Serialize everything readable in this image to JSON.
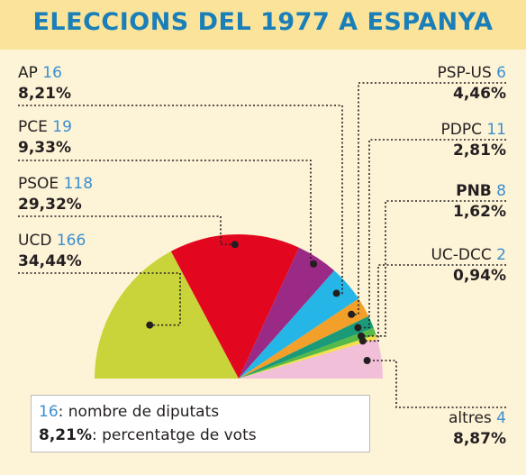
{
  "title": "ELECCIONS DEL 1977 A ESPANYA",
  "legend": {
    "seats_example": "16",
    "seats_text": ": nombre de diputats",
    "pct_example": "8,21%",
    "pct_text": ": percentatge de vots"
  },
  "labels": {
    "ucd": {
      "name": "UCD",
      "seats": "166",
      "pct": "34,44%"
    },
    "psoe": {
      "name": "PSOE",
      "seats": "118",
      "pct": "29,32%"
    },
    "pce": {
      "name": "PCE",
      "seats": "19",
      "pct": "9,33%"
    },
    "ap": {
      "name": "AP",
      "seats": "16",
      "pct": "8,21%"
    },
    "pspus": {
      "name": "PSP-US",
      "seats": "6",
      "pct": "4,46%"
    },
    "pdpc": {
      "name": "PDPC",
      "seats": "11",
      "pct": "2,81%"
    },
    "pnb": {
      "name": "PNB",
      "seats": "8",
      "pct": "1,62%"
    },
    "ucdcc": {
      "name": "UC-DCC",
      "seats": "2",
      "pct": "0,94%"
    },
    "altres": {
      "name": "altres",
      "seats": "4",
      "pct": "8,87%"
    }
  },
  "chart_data": {
    "type": "pie",
    "shape": "semicircle",
    "title": "ELECCIONS DEL 1977 A ESPANYA",
    "slices": [
      {
        "name": "UCD",
        "seats": 166,
        "value": 34.44,
        "color": "#c9d43a"
      },
      {
        "name": "PSOE",
        "seats": 118,
        "value": 29.32,
        "color": "#e2061e"
      },
      {
        "name": "PCE",
        "seats": 19,
        "value": 9.33,
        "color": "#9b2a86"
      },
      {
        "name": "AP",
        "seats": 16,
        "value": 8.21,
        "color": "#25b6e7"
      },
      {
        "name": "PSP-US",
        "seats": 6,
        "value": 4.46,
        "color": "#f3a02a"
      },
      {
        "name": "PDPC",
        "seats": 11,
        "value": 2.81,
        "color": "#1a9a78"
      },
      {
        "name": "PNB",
        "seats": 8,
        "value": 1.62,
        "color": "#57b947"
      },
      {
        "name": "UC-DCC",
        "seats": 2,
        "value": 0.94,
        "color": "#f4e04a"
      },
      {
        "name": "altres",
        "seats": 4,
        "value": 8.87,
        "color": "#f2bfd8"
      }
    ]
  }
}
